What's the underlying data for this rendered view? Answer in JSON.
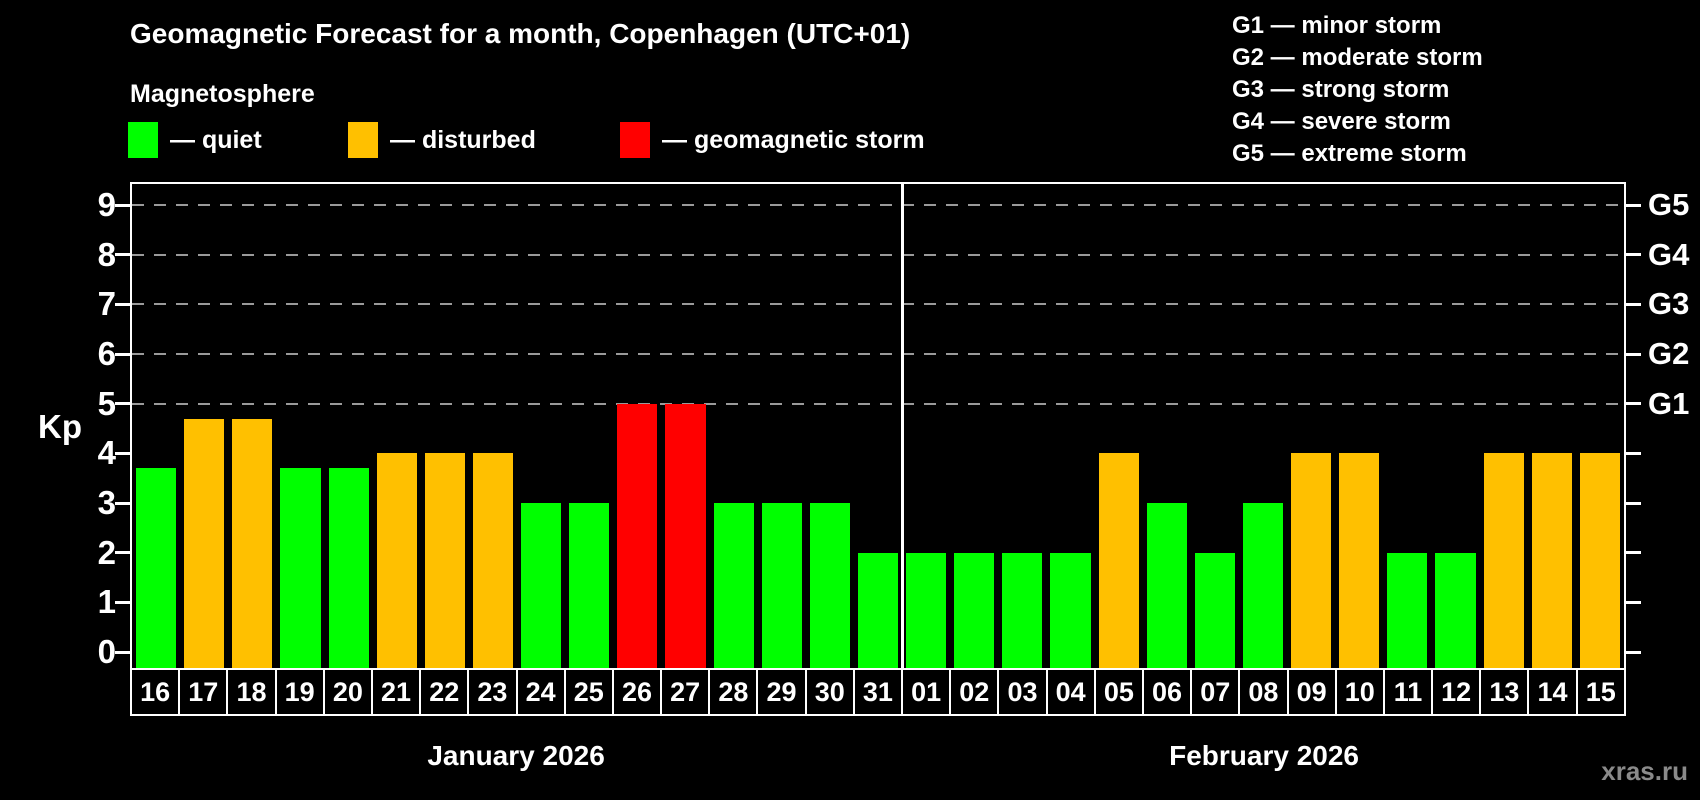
{
  "title": "Geomagnetic Forecast for a month, Copenhagen (UTC+01)",
  "subtitle": "Magnetosphere",
  "watermark": "xras.ru",
  "colors": {
    "quiet": "#00ff00",
    "disturbed": "#ffc000",
    "storm": "#ff0000",
    "gridline": "#9a9a9a",
    "axis": "#ffffff"
  },
  "legend": {
    "items": [
      {
        "key": "quiet",
        "label": "— quiet"
      },
      {
        "key": "disturbed",
        "label": "— disturbed"
      },
      {
        "key": "storm",
        "label": "— geomagnetic storm"
      }
    ]
  },
  "g_scale_legend": [
    "G1 — minor storm",
    "G2 — moderate storm",
    "G3 — strong storm",
    "G4 — severe storm",
    "G5 — extreme storm"
  ],
  "chart_data": {
    "type": "bar",
    "title": "Geomagnetic Forecast for a month, Copenhagen (UTC+01)",
    "ylabel": "Kp",
    "ylim": [
      0,
      9
    ],
    "y_ticks": [
      0,
      1,
      2,
      3,
      4,
      5,
      6,
      7,
      8,
      9
    ],
    "gridlines_at": [
      5,
      6,
      7,
      8,
      9
    ],
    "grid": "dashed-horizontal-top-half",
    "legend_position": "top-left",
    "right_axis_labels": [
      {
        "label": "G1",
        "kp": 5
      },
      {
        "label": "G2",
        "kp": 6
      },
      {
        "label": "G3",
        "kp": 7
      },
      {
        "label": "G4",
        "kp": 8
      },
      {
        "label": "G5",
        "kp": 9
      }
    ],
    "months": [
      {
        "label": "January 2026",
        "days": 16
      },
      {
        "label": "February 2026",
        "days": 15
      }
    ],
    "bars": [
      {
        "day": "16",
        "kp": 3.7,
        "status": "quiet"
      },
      {
        "day": "17",
        "kp": 4.7,
        "status": "disturbed"
      },
      {
        "day": "18",
        "kp": 4.7,
        "status": "disturbed"
      },
      {
        "day": "19",
        "kp": 3.7,
        "status": "quiet"
      },
      {
        "day": "20",
        "kp": 3.7,
        "status": "quiet"
      },
      {
        "day": "21",
        "kp": 4,
        "status": "disturbed"
      },
      {
        "day": "22",
        "kp": 4,
        "status": "disturbed"
      },
      {
        "day": "23",
        "kp": 4,
        "status": "disturbed"
      },
      {
        "day": "24",
        "kp": 3,
        "status": "quiet"
      },
      {
        "day": "25",
        "kp": 3,
        "status": "quiet"
      },
      {
        "day": "26",
        "kp": 5,
        "status": "storm"
      },
      {
        "day": "27",
        "kp": 5,
        "status": "storm"
      },
      {
        "day": "28",
        "kp": 3,
        "status": "quiet"
      },
      {
        "day": "29",
        "kp": 3,
        "status": "quiet"
      },
      {
        "day": "30",
        "kp": 3,
        "status": "quiet"
      },
      {
        "day": "31",
        "kp": 2,
        "status": "quiet"
      },
      {
        "day": "01",
        "kp": 2,
        "status": "quiet"
      },
      {
        "day": "02",
        "kp": 2,
        "status": "quiet"
      },
      {
        "day": "03",
        "kp": 2,
        "status": "quiet"
      },
      {
        "day": "04",
        "kp": 2,
        "status": "quiet"
      },
      {
        "day": "05",
        "kp": 4,
        "status": "disturbed"
      },
      {
        "day": "06",
        "kp": 3,
        "status": "quiet"
      },
      {
        "day": "07",
        "kp": 2,
        "status": "quiet"
      },
      {
        "day": "08",
        "kp": 3,
        "status": "quiet"
      },
      {
        "day": "09",
        "kp": 4,
        "status": "disturbed"
      },
      {
        "day": "10",
        "kp": 4,
        "status": "disturbed"
      },
      {
        "day": "11",
        "kp": 2,
        "status": "quiet"
      },
      {
        "day": "12",
        "kp": 2,
        "status": "quiet"
      },
      {
        "day": "13",
        "kp": 4,
        "status": "disturbed"
      },
      {
        "day": "14",
        "kp": 4,
        "status": "disturbed"
      },
      {
        "day": "15",
        "kp": 4,
        "status": "disturbed"
      }
    ]
  }
}
